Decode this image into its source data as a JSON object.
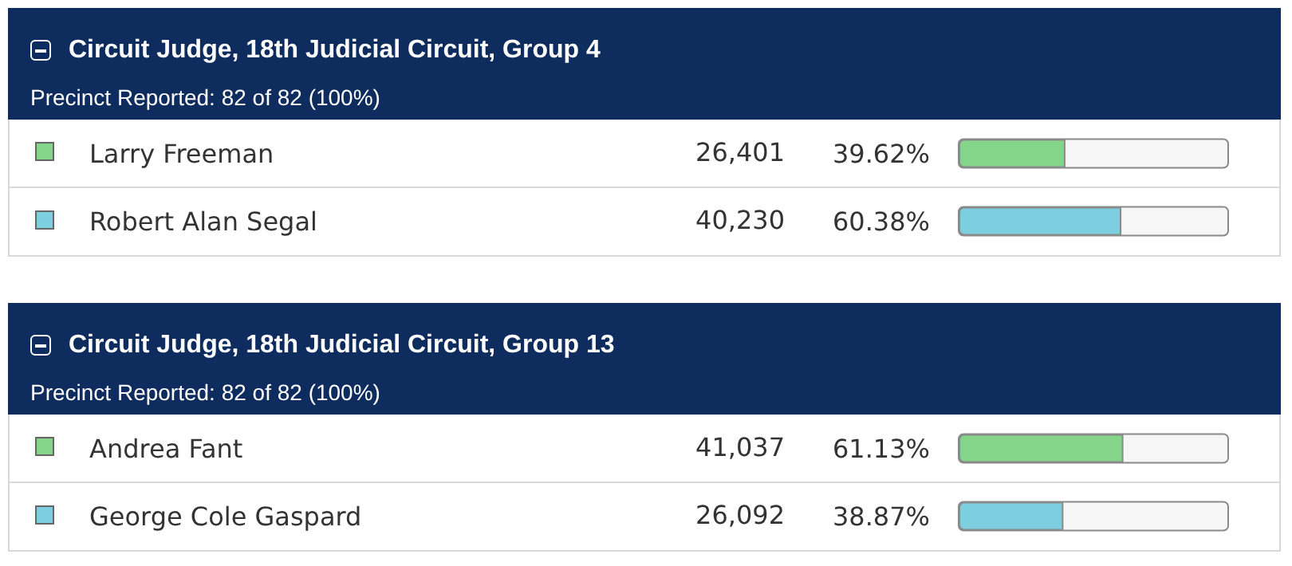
{
  "chart_data": [
    {
      "type": "bar",
      "orientation": "horizontal",
      "title": "Circuit Judge, 18th Judicial Circuit, Group 4",
      "subtitle": "Precinct Reported: 82 of 82 (100%)",
      "categories": [
        "Larry Freeman",
        "Robert Alan Segal"
      ],
      "values": [
        39.62,
        60.38
      ],
      "colors": [
        "#84d48a",
        "#7dcfe0"
      ],
      "value_labels": [
        "39.62%",
        "60.38%"
      ],
      "xlim": [
        0,
        100
      ],
      "tick_labels": "y",
      "annotations": [
        "26,401",
        "40,230"
      ]
    },
    {
      "type": "bar",
      "orientation": "horizontal",
      "title": "Circuit Judge, 18th Judicial Circuit, Group 13",
      "subtitle": "Precinct Reported: 82 of 82 (100%)",
      "categories": [
        "Andrea Fant",
        "George Cole Gaspard"
      ],
      "values": [
        61.13,
        38.87
      ],
      "colors": [
        "#84d48a",
        "#7dcfe0"
      ],
      "value_labels": [
        "61.13%",
        "38.87%"
      ],
      "xlim": [
        0,
        100
      ],
      "tick_labels": "y",
      "annotations": [
        "41,037",
        "26,092"
      ]
    }
  ]
}
